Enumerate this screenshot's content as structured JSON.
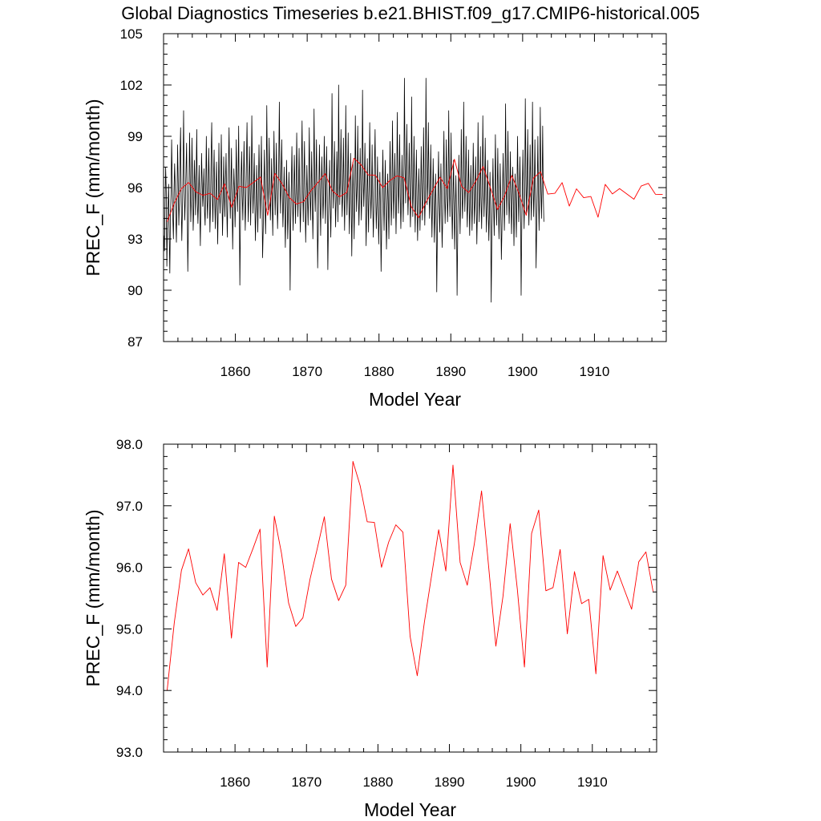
{
  "title": "Global Diagnostics Timeseries b.e21.BHIST.f09_g17.CMIP6-historical.005",
  "colors": {
    "monthly": "#000000",
    "annual": "#ff0000",
    "frame": "#000000"
  },
  "chart_data": [
    {
      "type": "line",
      "panel": "top",
      "xlabel": "Model Year",
      "ylabel": "PREC_F (mm/month)",
      "xlim": [
        1850,
        1920
      ],
      "ylim": [
        87,
        105
      ],
      "xticks": [
        1860,
        1870,
        1880,
        1890,
        1900,
        1910
      ],
      "xtick_labels": [
        "1860",
        "1870",
        "1880",
        "1890",
        "1900",
        "1910"
      ],
      "yticks": [
        87,
        90,
        93,
        96,
        99,
        102,
        105
      ],
      "ytick_labels": [
        "87",
        "90",
        "93",
        "96",
        "99",
        "102",
        "105"
      ],
      "series": [
        {
          "name": "monthly",
          "color": "#000000",
          "x_start": 1850.04,
          "x_step": 0.0833333,
          "values": [
            93.2,
            92.3,
            95.1,
            97.2,
            95.8,
            91.4,
            93.6,
            94.8,
            96.2,
            93.1,
            91.0,
            94.5,
            95.6,
            98.8,
            96.4,
            94.2,
            93.0,
            95.7,
            97.4,
            96.1,
            94.3,
            92.8,
            95.5,
            98.5,
            96.3,
            93.8,
            95.1,
            97.8,
            99.5,
            95.2,
            92.9,
            94.6,
            96.8,
            100.5,
            96.0,
            94.1,
            95.4,
            97.0,
            98.6,
            95.3,
            91.1,
            93.7,
            95.9,
            99.2,
            96.6,
            94.0,
            95.3,
            98.9,
            96.5,
            93.5,
            94.8,
            97.6,
            96.2,
            94.4,
            96.8,
            99.4,
            95.1,
            93.9,
            95.6,
            97.3,
            94.7,
            92.6,
            95.2,
            98.0,
            96.4,
            94.9,
            95.8,
            97.1,
            94.6,
            93.8,
            96.1,
            99.0,
            95.5,
            94.2,
            95.7,
            98.3,
            96.1,
            93.4,
            95.0,
            97.9,
            99.8,
            95.4,
            94.0,
            96.6,
            98.2,
            95.3,
            93.6,
            95.9,
            97.5,
            94.8,
            92.7,
            95.3,
            98.6,
            95.6,
            94.5,
            96.2,
            99.1,
            96.0,
            93.2,
            94.9,
            97.8,
            95.7,
            94.3,
            96.5,
            98.0,
            95.0,
            93.1,
            95.6,
            97.4,
            99.5,
            95.8,
            94.2,
            96.0,
            98.3,
            95.4,
            92.4,
            94.8,
            97.1,
            95.9,
            93.7,
            95.5,
            98.8,
            96.2,
            94.6,
            96.3,
            99.6,
            95.1,
            90.3,
            93.9,
            96.7,
            98.1,
            95.5,
            94.1,
            96.4,
            98.7,
            95.8,
            93.5,
            95.2,
            97.6,
            99.8,
            96.3,
            94.0,
            95.7,
            98.4,
            96.5,
            93.8,
            96.1,
            100.2,
            96.8,
            94.5,
            95.9,
            98.0,
            95.2,
            92.9,
            94.7,
            97.3,
            95.6,
            93.4,
            95.8,
            98.5,
            96.4,
            94.2,
            96.2,
            99.0,
            95.3,
            91.9,
            93.5,
            96.0,
            98.2,
            95.1,
            93.3,
            95.6,
            100.8,
            97.0,
            94.7,
            96.3,
            98.9,
            96.1,
            94.1,
            95.5,
            97.7,
            95.3,
            93.2,
            95.8,
            99.3,
            96.6,
            94.4,
            96.0,
            98.6,
            95.7,
            93.6,
            95.2,
            97.5,
            101.0,
            96.3,
            94.5,
            96.7,
            98.8,
            95.6,
            93.7,
            95.1,
            97.2,
            94.9,
            92.5,
            94.8,
            97.6,
            95.4,
            93.0,
            94.6,
            96.9,
            95.1,
            90.0,
            93.8,
            96.2,
            98.4,
            95.3,
            93.5,
            95.4,
            97.9,
            96.0,
            93.9,
            95.7,
            99.2,
            96.4,
            94.3,
            96.1,
            98.3,
            95.6,
            93.4,
            95.0,
            97.4,
            99.9,
            95.9,
            94.0,
            96.5,
            98.7,
            95.2,
            92.8,
            94.9,
            97.3,
            95.5,
            93.8,
            96.0,
            99.5,
            96.2,
            94.1,
            95.7,
            98.1,
            95.3,
            93.0,
            95.4,
            100.6,
            96.8,
            94.6,
            96.3,
            98.8,
            95.7,
            91.3,
            93.6,
            96.1,
            98.5,
            95.4,
            93.2,
            95.8,
            97.8,
            96.0,
            94.2,
            95.5,
            99.0,
            96.6,
            93.9,
            96.2,
            98.4,
            95.5,
            91.2,
            93.8,
            95.9,
            97.6,
            95.0,
            93.1,
            95.6,
            101.5,
            96.9,
            94.8,
            96.5,
            98.7,
            95.8,
            93.7,
            95.3,
            98.1,
            96.4,
            94.0,
            102.0,
            97.2,
            95.0,
            96.6,
            99.4,
            96.2,
            94.3,
            95.7,
            98.9,
            96.1,
            93.5,
            95.9,
            100.8,
            96.7,
            94.4,
            96.3,
            99.2,
            95.6,
            93.3,
            95.4,
            98.0,
            96.0,
            92.0,
            94.7,
            97.5,
            95.3,
            93.0,
            95.8,
            100.2,
            96.5,
            94.6,
            96.2,
            99.6,
            95.9,
            93.8,
            95.5,
            98.3,
            96.3,
            94.1,
            95.8,
            101.7,
            97.0,
            94.9,
            96.4,
            98.6,
            95.4,
            92.6,
            94.8,
            97.7,
            95.6,
            93.4,
            96.0,
            99.8,
            96.4,
            94.2,
            95.6,
            98.5,
            95.2,
            93.1,
            94.9,
            97.3,
            99.4,
            95.5,
            93.6,
            95.1,
            97.8,
            95.0,
            92.7,
            94.6,
            96.9,
            94.7,
            91.1,
            93.7,
            96.1,
            98.2,
            95.3,
            93.5,
            95.4,
            97.6,
            94.9,
            92.4,
            94.3,
            96.8,
            95.2,
            93.0,
            95.6,
            98.7,
            96.1,
            93.8,
            95.3,
            99.9,
            96.5,
            94.2,
            95.9,
            98.0,
            95.4,
            93.3,
            95.7,
            100.4,
            96.8,
            94.5,
            96.1,
            99.1,
            95.6,
            93.6,
            95.2,
            97.9,
            95.8,
            94.0,
            96.3,
            102.4,
            97.4,
            95.1,
            96.8,
            99.7,
            96.2,
            94.4,
            95.9,
            98.6,
            96.0,
            93.7,
            95.4,
            101.3,
            96.6,
            94.3,
            96.1,
            99.0,
            95.5,
            93.4,
            95.8,
            98.2,
            95.3,
            92.9,
            94.7,
            97.1,
            95.6,
            93.5,
            95.2,
            98.4,
            96.0,
            94.1,
            95.7,
            99.5,
            96.3,
            93.8,
            95.6,
            102.4,
            97.3,
            95.0,
            96.7,
            99.8,
            96.1,
            94.2,
            95.8,
            98.5,
            95.4,
            93.1,
            95.0,
            97.7,
            95.6,
            92.8,
            94.5,
            96.8,
            94.6,
            89.9,
            93.2,
            95.9,
            98.1,
            95.1,
            93.4,
            95.5,
            97.4,
            94.8,
            92.5,
            94.3,
            96.9,
            99.3,
            95.6,
            93.9,
            95.7,
            98.8,
            96.2,
            94.0,
            95.5,
            100.5,
            96.6,
            94.3,
            96.1,
            99.2,
            95.3,
            93.0,
            95.1,
            97.6,
            95.0,
            92.4,
            94.6,
            96.7,
            94.4,
            89.7,
            93.1,
            95.8,
            97.9,
            95.2,
            93.3,
            95.6,
            99.4,
            96.0,
            94.2,
            95.7,
            101.0,
            96.9,
            94.6,
            96.4,
            99.0,
            95.8,
            93.7,
            95.3,
            98.2,
            95.5,
            93.2,
            95.0,
            97.3,
            95.6,
            93.5,
            95.4,
            98.6,
            95.9,
            93.9,
            95.5,
            97.8,
            95.3,
            92.7,
            94.8,
            99.8,
            96.2,
            94.0,
            95.6,
            98.4,
            95.4,
            93.6,
            95.7,
            100.2,
            96.5,
            94.3,
            96.0,
            98.9,
            95.5,
            93.4,
            95.2,
            97.6,
            95.1,
            92.9,
            94.6,
            96.9,
            94.7,
            89.3,
            93.0,
            95.5,
            97.7,
            95.0,
            93.2,
            95.3,
            99.1,
            95.9,
            93.8,
            95.4,
            98.3,
            95.2,
            93.0,
            94.8,
            97.4,
            94.9,
            91.8,
            93.6,
            95.9,
            98.0,
            95.3,
            93.5,
            95.7,
            100.9,
            96.6,
            94.4,
            96.2,
            99.3,
            95.8,
            93.9,
            95.4,
            98.1,
            95.6,
            93.3,
            95.1,
            97.2,
            95.3,
            92.6,
            94.7,
            96.8,
            95.0,
            93.1,
            95.5,
            99.0,
            96.1,
            94.0,
            95.6,
            97.8,
            95.2,
            89.7,
            93.4,
            95.8,
            98.2,
            95.4,
            93.6,
            95.9,
            101.2,
            96.7,
            94.5,
            96.3,
            99.4,
            95.7,
            93.8,
            95.5,
            98.5,
            96.2,
            94.1,
            95.9,
            101.0,
            96.5,
            94.3,
            96.0,
            98.8,
            95.4,
            91.3,
            93.7,
            96.1,
            99.0,
            95.6,
            93.5,
            95.8,
            100.7,
            96.3,
            94.2,
            96.0,
            99.6,
            95.7,
            94.0
          ]
        },
        {
          "name": "annual",
          "color": "#ff0000",
          "x": [
            1850.5,
            1851.5,
            1852.5,
            1853.5,
            1854.5,
            1855.5,
            1856.5,
            1857.5,
            1858.5,
            1859.5,
            1860.5,
            1861.5,
            1862.5,
            1863.5,
            1864.5,
            1865.5,
            1866.5,
            1867.5,
            1868.5,
            1869.5,
            1870.5,
            1871.5,
            1872.5,
            1873.5,
            1874.5,
            1875.5,
            1876.5,
            1877.5,
            1878.5,
            1879.5,
            1880.5,
            1881.5,
            1882.5,
            1883.5,
            1884.5,
            1885.5,
            1886.5,
            1887.5,
            1888.5,
            1889.5,
            1890.5,
            1891.5,
            1892.5,
            1893.5,
            1894.5,
            1895.5,
            1896.5,
            1897.5,
            1898.5,
            1899.5,
            1900.5,
            1901.5,
            1902.5,
            1903.5,
            1904.5,
            1905.5,
            1906.5,
            1907.5,
            1908.5,
            1909.5,
            1910.5,
            1911.5,
            1912.5,
            1913.5,
            1914.5,
            1915.5,
            1916.5,
            1917.5,
            1918.5,
            1919.5
          ],
          "values": [
            94.0,
            95.1,
            95.95,
            96.3,
            95.75,
            95.55,
            95.67,
            95.3,
            96.22,
            94.85,
            96.08,
            96.0,
            96.3,
            96.62,
            94.38,
            96.83,
            96.23,
            95.42,
            95.04,
            95.18,
            95.81,
            96.3,
            96.82,
            95.81,
            95.46,
            95.71,
            97.72,
            97.33,
            96.74,
            96.73,
            96.0,
            96.41,
            96.69,
            96.57,
            94.88,
            94.24,
            95.11,
            95.86,
            96.61,
            95.94,
            97.66,
            96.08,
            95.71,
            96.39,
            97.24,
            96.0,
            94.72,
            95.53,
            96.71,
            95.65,
            94.38,
            96.55,
            96.93,
            95.62,
            95.67,
            96.29,
            94.92,
            95.93,
            95.41,
            95.48,
            94.27,
            96.19,
            95.63,
            95.94,
            95.63,
            95.32,
            96.09,
            96.25,
            95.61,
            95.6
          ]
        }
      ]
    },
    {
      "type": "line",
      "panel": "bottom",
      "xlabel": "Model Year",
      "ylabel": "PREC_F (mm/month)",
      "xlim": [
        1850,
        1919
      ],
      "ylim": [
        93.0,
        98.0
      ],
      "xticks": [
        1860,
        1870,
        1880,
        1890,
        1900,
        1910
      ],
      "xtick_labels": [
        "1860",
        "1870",
        "1880",
        "1890",
        "1900",
        "1910"
      ],
      "yticks": [
        93,
        94,
        95,
        96,
        97,
        98
      ],
      "ytick_labels": [
        "93.0",
        "94.0",
        "95.0",
        "96.0",
        "97.0",
        "98.0"
      ],
      "series": [
        {
          "name": "annual",
          "color": "#ff0000",
          "x": [
            1850.5,
            1851.5,
            1852.5,
            1853.5,
            1854.5,
            1855.5,
            1856.5,
            1857.5,
            1858.5,
            1859.5,
            1860.5,
            1861.5,
            1862.5,
            1863.5,
            1864.5,
            1865.5,
            1866.5,
            1867.5,
            1868.5,
            1869.5,
            1870.5,
            1871.5,
            1872.5,
            1873.5,
            1874.5,
            1875.5,
            1876.5,
            1877.5,
            1878.5,
            1879.5,
            1880.5,
            1881.5,
            1882.5,
            1883.5,
            1884.5,
            1885.5,
            1886.5,
            1887.5,
            1888.5,
            1889.5,
            1890.5,
            1891.5,
            1892.5,
            1893.5,
            1894.5,
            1895.5,
            1896.5,
            1897.5,
            1898.5,
            1899.5,
            1900.5,
            1901.5,
            1902.5,
            1903.5,
            1904.5,
            1905.5,
            1906.5,
            1907.5,
            1908.5,
            1909.5,
            1910.5,
            1911.5,
            1912.5,
            1913.5,
            1914.5,
            1915.5,
            1916.5,
            1917.5,
            1918.5
          ],
          "values": [
            94.0,
            95.1,
            95.95,
            96.3,
            95.75,
            95.55,
            95.67,
            95.3,
            96.22,
            94.85,
            96.08,
            96.0,
            96.3,
            96.62,
            94.38,
            96.83,
            96.23,
            95.42,
            95.04,
            95.18,
            95.81,
            96.3,
            96.82,
            95.81,
            95.46,
            95.71,
            97.72,
            97.33,
            96.74,
            96.73,
            96.0,
            96.41,
            96.69,
            96.57,
            94.88,
            94.24,
            95.11,
            95.86,
            96.61,
            95.94,
            97.66,
            96.08,
            95.71,
            96.39,
            97.24,
            96.0,
            94.72,
            95.53,
            96.71,
            95.65,
            94.38,
            96.55,
            96.93,
            95.62,
            95.67,
            96.29,
            94.92,
            95.93,
            95.41,
            95.48,
            94.27,
            96.19,
            95.63,
            95.94,
            95.63,
            95.32,
            96.09,
            96.25,
            95.61
          ]
        }
      ]
    }
  ]
}
